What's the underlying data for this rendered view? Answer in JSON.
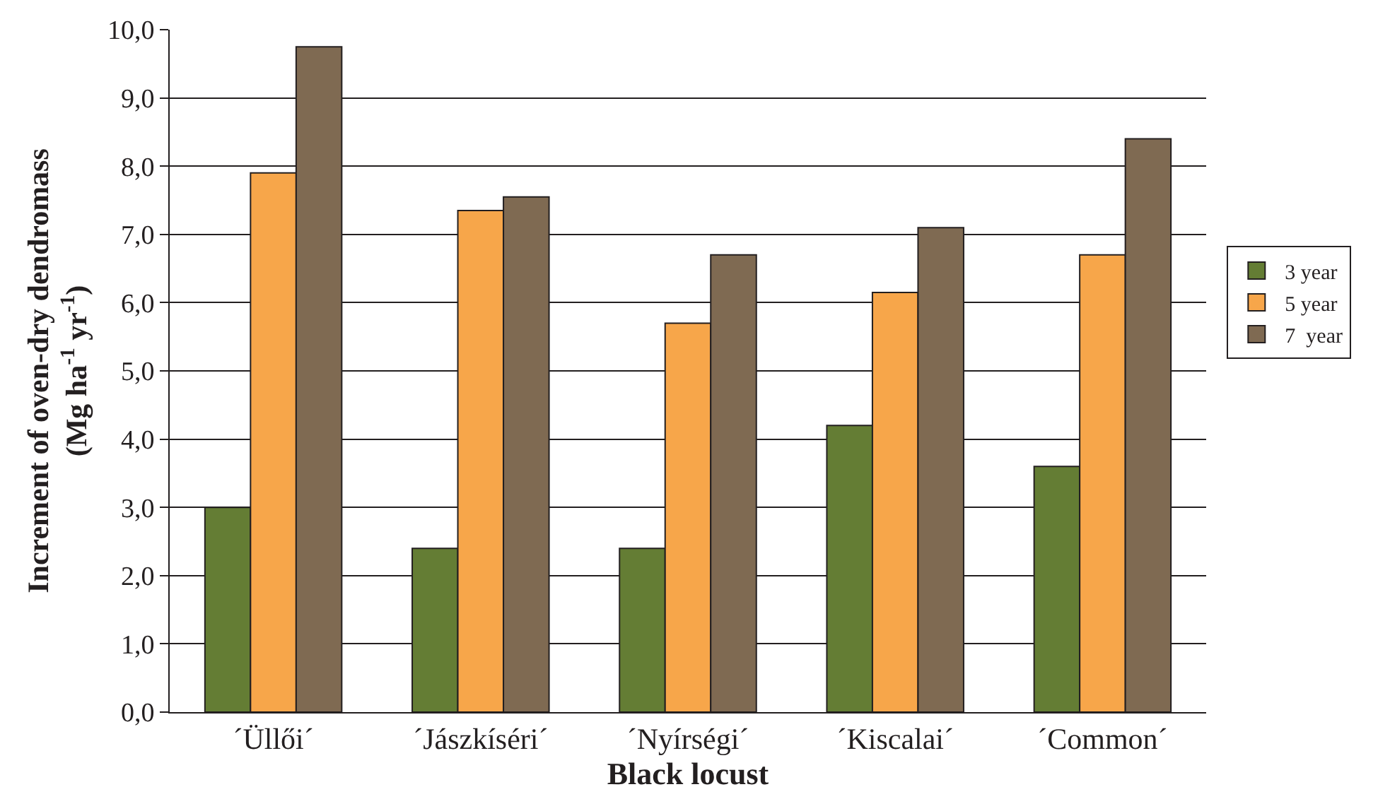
{
  "chart_data": {
    "type": "bar",
    "xlabel": "Black locust",
    "ylabel": "Increment of oven-dry dendromass\n(Mg ha$^{-1}$ yr$^{-1}$)",
    "categories": [
      "´Üllői´",
      "´Jászkíséri´",
      "´Nyírségi´",
      "´Kiscalai´",
      "´Common´"
    ],
    "series": [
      {
        "name": "3 year",
        "color": "#647d34",
        "values": [
          3.0,
          2.4,
          2.4,
          4.2,
          3.6
        ]
      },
      {
        "name": "5 year",
        "color": "#f7a64a",
        "values": [
          7.9,
          7.35,
          5.7,
          6.15,
          6.7
        ]
      },
      {
        "name": "7  year",
        "color": "#7f6a52",
        "values": [
          9.75,
          7.55,
          6.7,
          7.1,
          8.4
        ]
      }
    ],
    "ylim": [
      0,
      10
    ],
    "yticks": [
      {
        "value": 0,
        "label": "0,0"
      },
      {
        "value": 1,
        "label": "1,0"
      },
      {
        "value": 2,
        "label": "2,0"
      },
      {
        "value": 3,
        "label": "3,0"
      },
      {
        "value": 4,
        "label": "4,0"
      },
      {
        "value": 5,
        "label": "5,0"
      },
      {
        "value": 6,
        "label": "6,0"
      },
      {
        "value": 7,
        "label": "7,0"
      },
      {
        "value": 8,
        "label": "8,0"
      },
      {
        "value": 9,
        "label": "9,0"
      },
      {
        "value": 10,
        "label": "10,0"
      }
    ],
    "grid": true,
    "legend": "right"
  }
}
